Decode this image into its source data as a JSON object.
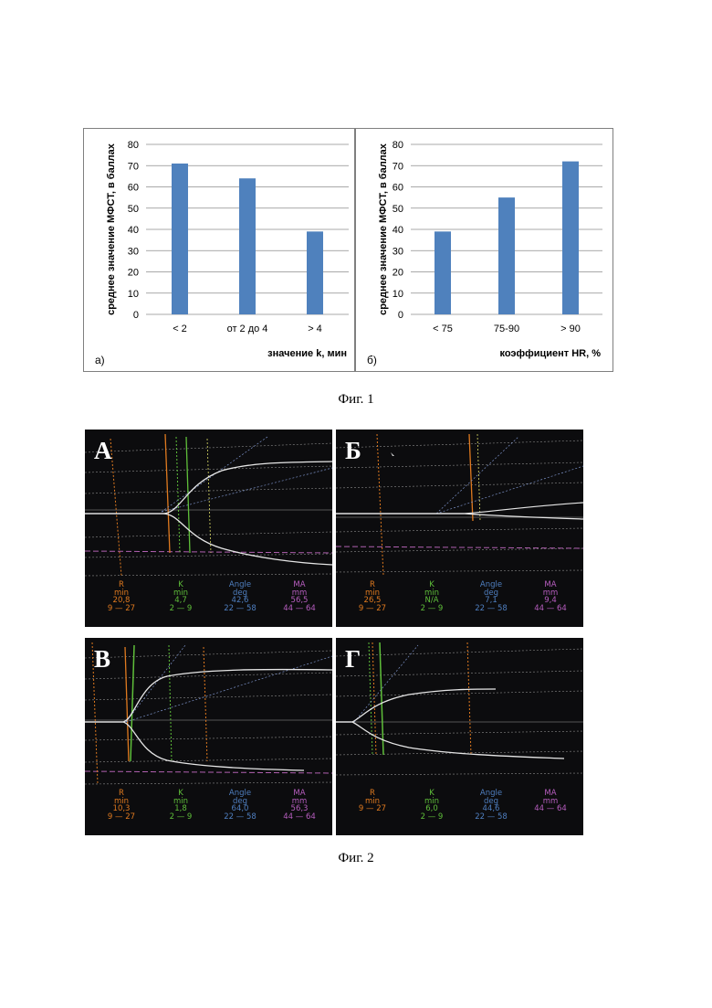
{
  "figure1": {
    "caption": "Фиг. 1",
    "charts": [
      {
        "id": "a",
        "panel_letter": "а)",
        "ylabel": "среднее значение МФСТ, в баллах",
        "xlabel": "значение k, мин",
        "color": "#4f81bd"
      },
      {
        "id": "b",
        "panel_letter": "б)",
        "ylabel": "среднее значение МФСТ, в баллах",
        "xlabel": "коэффициент HR, %",
        "color": "#4f81bd"
      }
    ]
  },
  "chart_data": [
    {
      "type": "bar",
      "categories": [
        "< 2",
        "от 2 до 4",
        "> 4"
      ],
      "values": [
        71,
        64,
        39
      ],
      "ylabel": "среднее значение МФСТ, в баллах",
      "xlabel": "значение k, мин",
      "ylim": [
        0,
        80
      ],
      "yticks": [
        0,
        10,
        20,
        30,
        40,
        50,
        60,
        70,
        80
      ],
      "grid": true
    },
    {
      "type": "bar",
      "categories": [
        "< 75",
        "75-90",
        "> 90"
      ],
      "values": [
        39,
        55,
        72
      ],
      "ylabel": "среднее значение МФСТ, в баллах",
      "xlabel": "коэффициент HR, %",
      "ylim": [
        0,
        80
      ],
      "yticks": [
        0,
        10,
        20,
        30,
        40,
        50,
        60,
        70,
        80
      ],
      "grid": true
    }
  ],
  "figure2": {
    "caption": "Фиг. 2",
    "panels": [
      {
        "letter": "А",
        "R": {
          "name": "R",
          "unit": "min",
          "value": "20,8",
          "range": "9 — 27"
        },
        "K": {
          "name": "K",
          "unit": "min",
          "value": "4,7",
          "range": "2 — 9"
        },
        "Angle": {
          "name": "Angle",
          "unit": "deg",
          "value": "42,6",
          "range": "22 — 58"
        },
        "MA": {
          "name": "MA",
          "unit": "mm",
          "value": "56,5",
          "range": "44 — 64"
        }
      },
      {
        "letter": "Б",
        "R": {
          "name": "R",
          "unit": "min",
          "value": "26,5",
          "range": "9 — 27"
        },
        "K": {
          "name": "K",
          "unit": "min",
          "value": "N/A",
          "range": "2 — 9"
        },
        "Angle": {
          "name": "Angle",
          "unit": "deg",
          "value": "7,1",
          "range": "22 — 58"
        },
        "MA": {
          "name": "MA",
          "unit": "mm",
          "value": "9,4",
          "range": "44 — 64"
        }
      },
      {
        "letter": "В",
        "R": {
          "name": "R",
          "unit": "min",
          "value": "10,3",
          "range": "9 — 27"
        },
        "K": {
          "name": "K",
          "unit": "min",
          "value": "1,8",
          "range": "2 — 9"
        },
        "Angle": {
          "name": "Angle",
          "unit": "deg",
          "value": "64,0",
          "range": "22 — 58"
        },
        "MA": {
          "name": "MA",
          "unit": "mm",
          "value": "56,3",
          "range": "44 — 64"
        }
      },
      {
        "letter": "Г",
        "R": {
          "name": "R",
          "unit": "min",
          "value": "",
          "range": "9 — 27"
        },
        "K": {
          "name": "K",
          "unit": "min",
          "value": "6,0",
          "range": "2 — 9"
        },
        "Angle": {
          "name": "Angle",
          "unit": "deg",
          "value": "44,6",
          "range": "22 — 58"
        },
        "MA": {
          "name": "MA",
          "unit": "mm",
          "value": "",
          "range": "44 — 64"
        }
      }
    ],
    "colors": {
      "R": "#e07a1f",
      "K": "#5fbf3a",
      "Angle": "#4f7fc0",
      "MA": "#b85ec0"
    }
  }
}
